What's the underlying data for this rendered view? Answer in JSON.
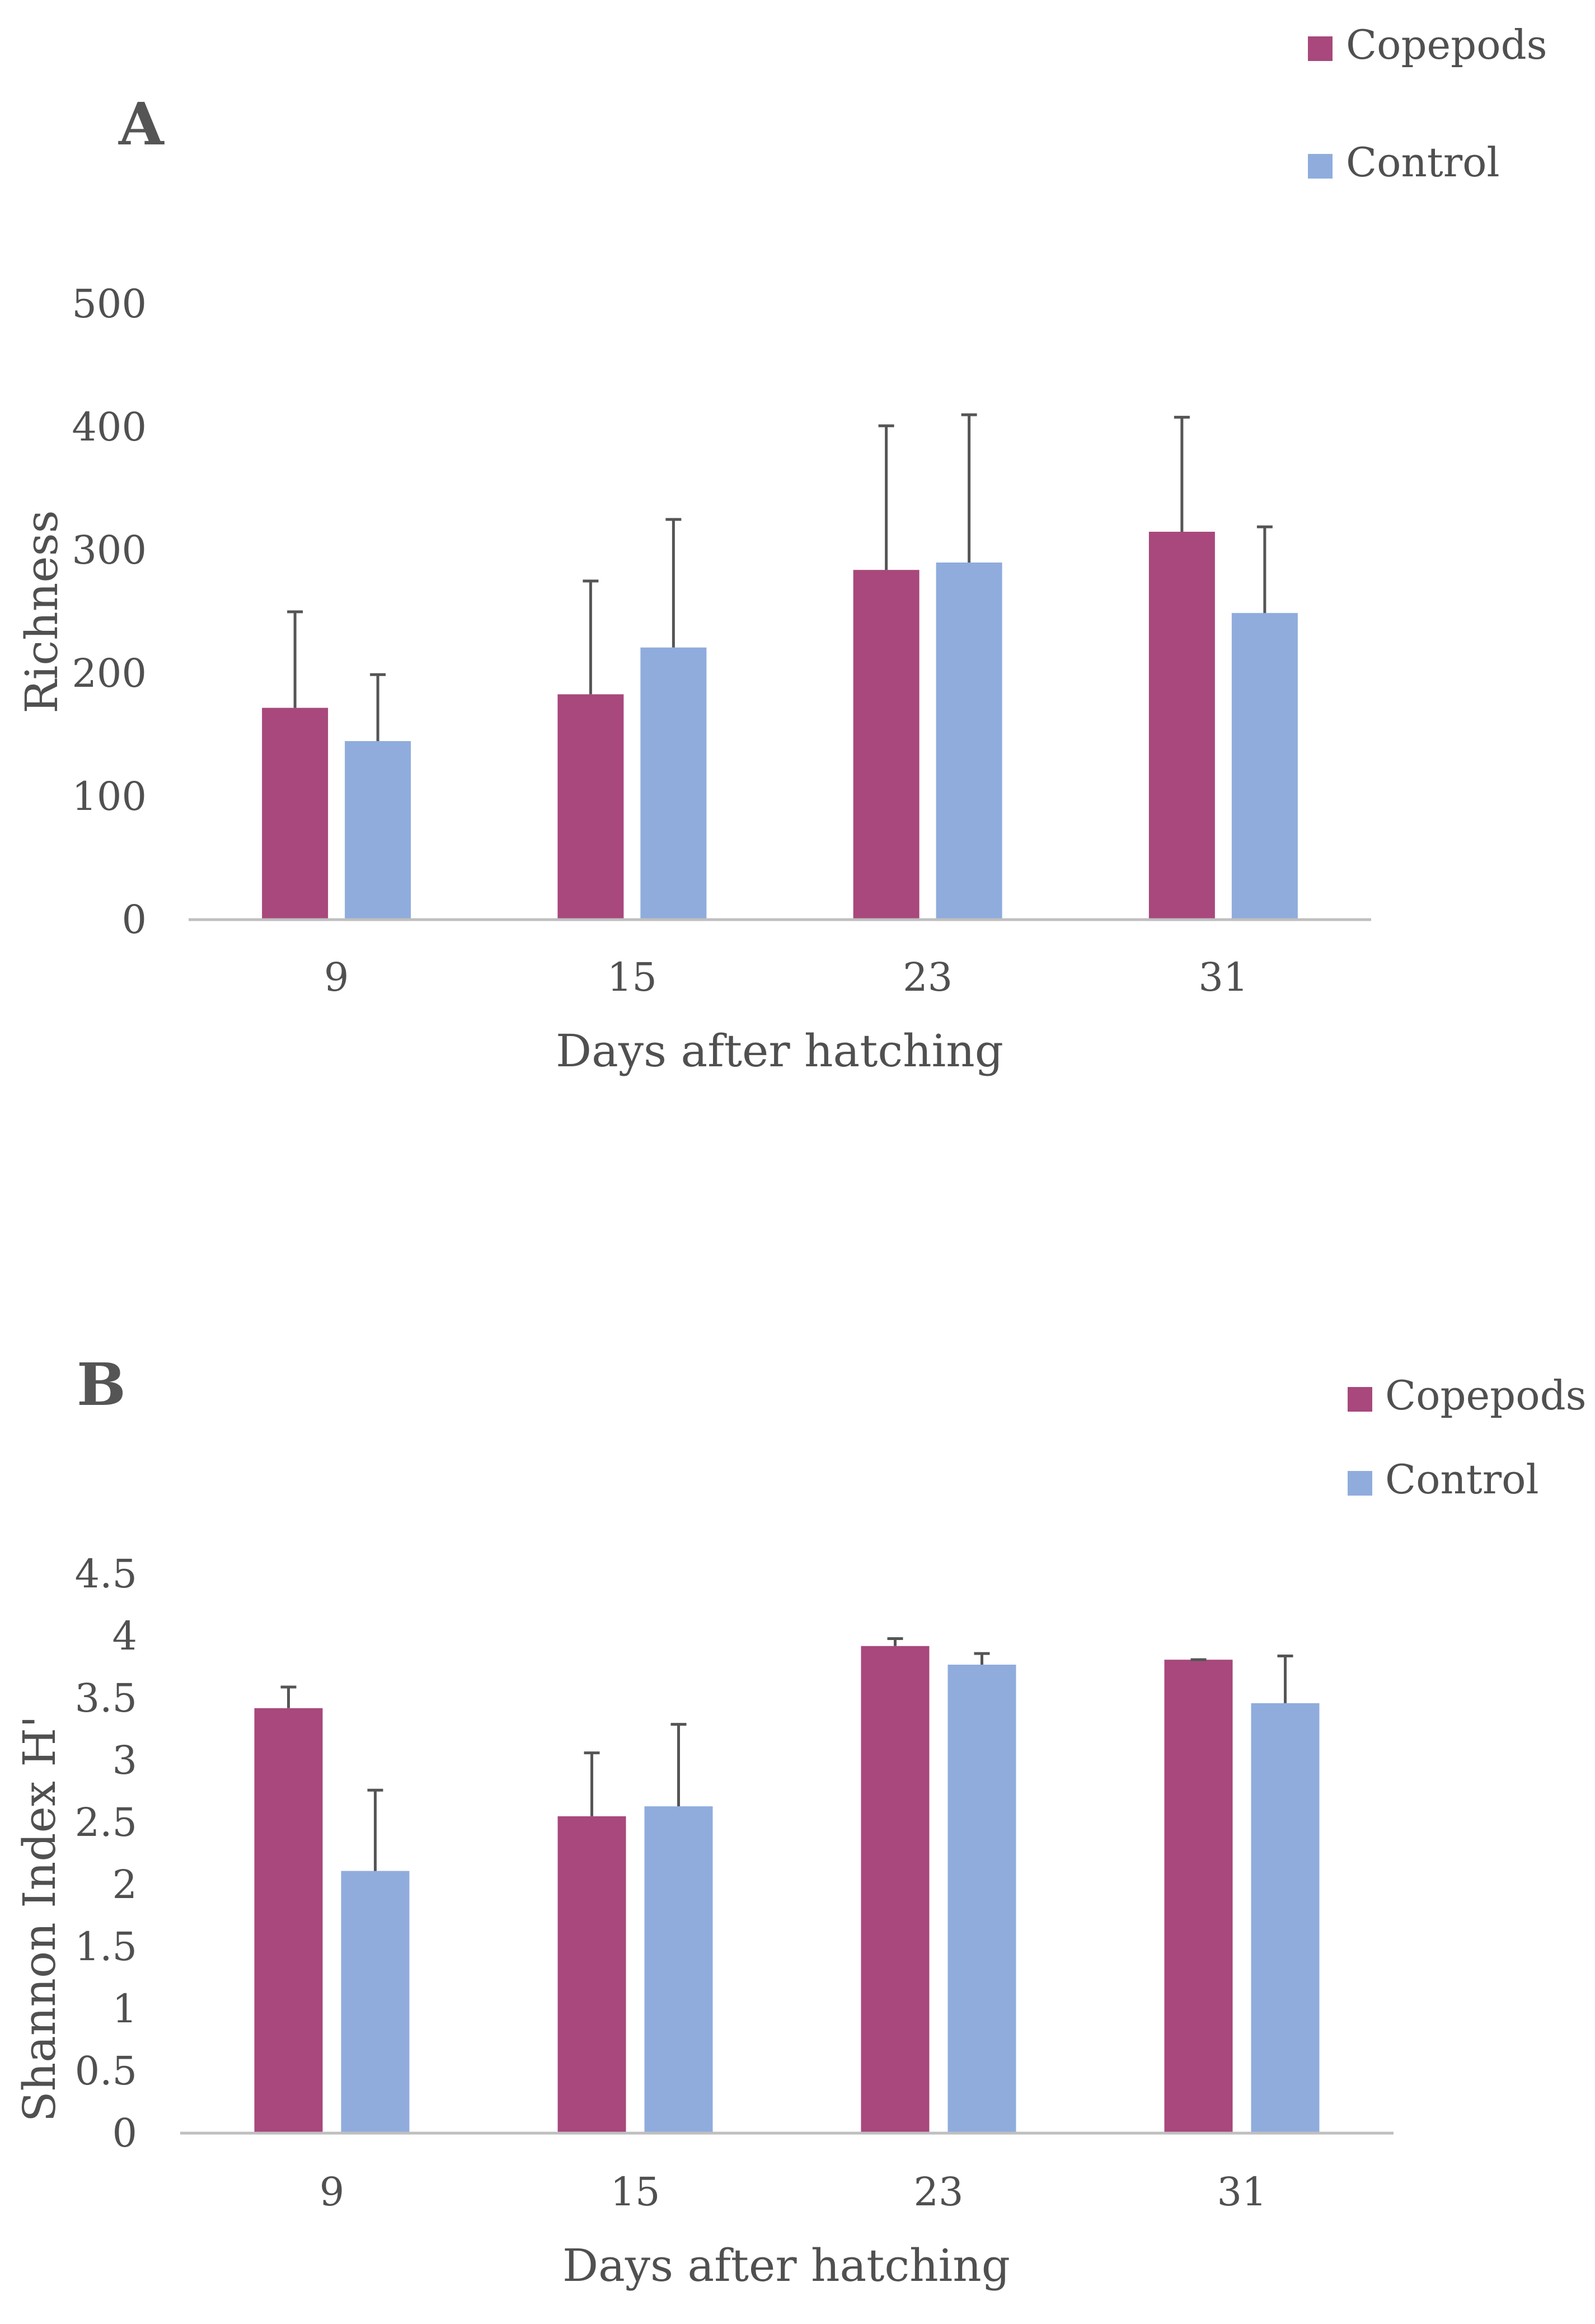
{
  "figure": {
    "colors": {
      "copepods": "#A8487C",
      "control": "#8FACDD",
      "axis": "#BFBFBF",
      "error_bar": "#555555",
      "text": "#505050"
    }
  },
  "chart_data": [
    {
      "panel": "A",
      "type": "bar",
      "xlabel": "Days after hatching",
      "ylabel": "Richness",
      "categories": [
        "9",
        "15",
        "23",
        "31"
      ],
      "ylim": [
        0,
        500
      ],
      "yticks": [
        "0",
        "100",
        "200",
        "300",
        "400",
        "500"
      ],
      "ytick_values": [
        0,
        100,
        200,
        300,
        400,
        500
      ],
      "legend_position": "top-right",
      "series": [
        {
          "name": "Copepods",
          "color": "#A8487C",
          "values": [
            172,
            183,
            284,
            315
          ],
          "error": [
            78,
            92,
            117,
            93
          ]
        },
        {
          "name": "Control",
          "color": "#8FACDD",
          "values": [
            145,
            221,
            290,
            249
          ],
          "error": [
            54,
            104,
            120,
            70
          ]
        }
      ]
    },
    {
      "panel": "B",
      "type": "bar",
      "xlabel": "Days after hatching",
      "ylabel": "Shannon Index H'",
      "categories": [
        "9",
        "15",
        "23",
        "31"
      ],
      "ylim": [
        0,
        4.5
      ],
      "yticks": [
        "0",
        "0.5",
        "1",
        "1.5",
        "2",
        "2.5",
        "3",
        "3.5",
        "4",
        "4.5"
      ],
      "ytick_values": [
        0,
        0.5,
        1,
        1.5,
        2,
        2.5,
        3,
        3.5,
        4,
        4.5
      ],
      "legend_position": "top-right",
      "series": [
        {
          "name": "Copepods",
          "color": "#A8487C",
          "values": [
            3.42,
            2.55,
            3.92,
            3.81
          ],
          "error": [
            0.17,
            0.51,
            0.06,
            0.0
          ]
        },
        {
          "name": "Control",
          "color": "#8FACDD",
          "values": [
            2.11,
            2.63,
            3.77,
            3.46
          ],
          "error": [
            0.65,
            0.66,
            0.09,
            0.38
          ]
        }
      ]
    }
  ]
}
